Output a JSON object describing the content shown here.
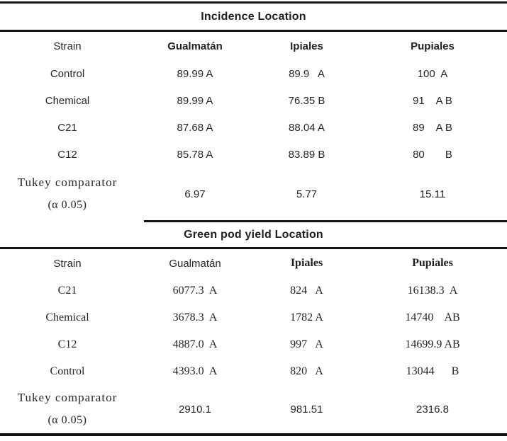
{
  "incidence": {
    "title": "Incidence Location",
    "headers": [
      "Strain",
      "Gualmatán",
      "Ipiales",
      "Pupiales"
    ],
    "rows": [
      {
        "strain": "Control",
        "gualmatan": "89.99 A",
        "ipiales": "89.9   A",
        "pupiales": "100  A"
      },
      {
        "strain": "Chemical",
        "gualmatan": "89.99 A",
        "ipiales": "76.35 B",
        "pupiales": "91    A B"
      },
      {
        "strain": "C21",
        "gualmatan": "87.68 A",
        "ipiales": "88.04 A",
        "pupiales": "89    A B"
      },
      {
        "strain": "C12",
        "gualmatan": "85.78 A",
        "ipiales": "83.89 B",
        "pupiales": "80       B"
      }
    ],
    "tukey": {
      "label_line1": "Tukey comparator",
      "label_line2": "(α 0.05)",
      "gualmatan": "6.97",
      "ipiales": "5.77",
      "pupiales": "15.11"
    }
  },
  "yield": {
    "title": "Green pod yield Location",
    "headers": [
      "Strain",
      "Gualmatán",
      "Ipiales",
      "Pupiales"
    ],
    "rows": [
      {
        "strain": "C21",
        "gualmatan": "6077.3  A",
        "ipiales": "824   A",
        "pupiales": "16138.3  A"
      },
      {
        "strain": "Chemical",
        "gualmatan": "3678.3  A",
        "ipiales": "1782 A",
        "pupiales": "14740    AB"
      },
      {
        "strain": "C12",
        "gualmatan": "4887.0  A",
        "ipiales": "997   A",
        "pupiales": "14699.9 AB"
      },
      {
        "strain": "Control",
        "gualmatan": "4393.0  A",
        "ipiales": "820   A",
        "pupiales": "13044      B"
      }
    ],
    "tukey": {
      "label_line1": "Tukey comparator",
      "label_line2": "(α 0.05)",
      "gualmatan": "2910.1",
      "ipiales": "981.51",
      "pupiales": "2316.8"
    }
  },
  "colors": {
    "text": "#262626",
    "rule": "#141414",
    "background": "#ffffff"
  }
}
